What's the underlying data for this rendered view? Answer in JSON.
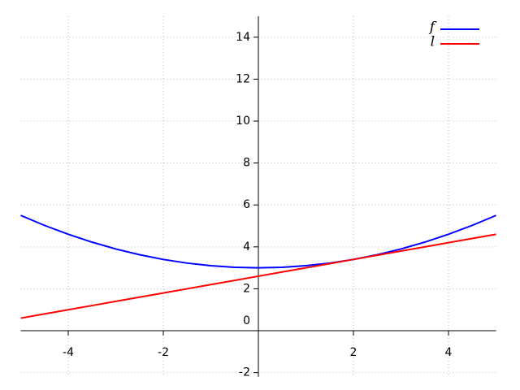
{
  "chart_data": {
    "type": "line",
    "x": [
      -5,
      -4.5,
      -4,
      -3.5,
      -3,
      -2.5,
      -2,
      -1.5,
      -1,
      -0.5,
      0,
      0.5,
      1,
      1.5,
      2,
      2.5,
      3,
      3.5,
      4,
      4.5,
      5
    ],
    "series": [
      {
        "name": "f",
        "color": "#0000ff",
        "values": [
          5.5,
          5.025,
          4.6,
          4.225,
          3.9,
          3.625,
          3.4,
          3.225,
          3.1,
          3.025,
          3,
          3.025,
          3.1,
          3.225,
          3.4,
          3.625,
          3.9,
          4.225,
          4.6,
          5.025,
          5.5
        ]
      },
      {
        "name": "l",
        "color": "#ff0000",
        "values": [
          0.6,
          0.8,
          1.0,
          1.2,
          1.4,
          1.6,
          1.8,
          2.0,
          2.2,
          2.4,
          2.6,
          2.8,
          3.0,
          3.2,
          3.4,
          3.6,
          3.8,
          4.0,
          4.2,
          4.4,
          4.6
        ]
      }
    ],
    "xlim": [
      -5,
      5
    ],
    "ylim": [
      -2.2,
      15
    ],
    "xticks": [
      -4,
      -2,
      2,
      4
    ],
    "yticks": [
      -2,
      0,
      2,
      4,
      6,
      8,
      10,
      12,
      14
    ],
    "grid": true,
    "legend": "upper right"
  }
}
